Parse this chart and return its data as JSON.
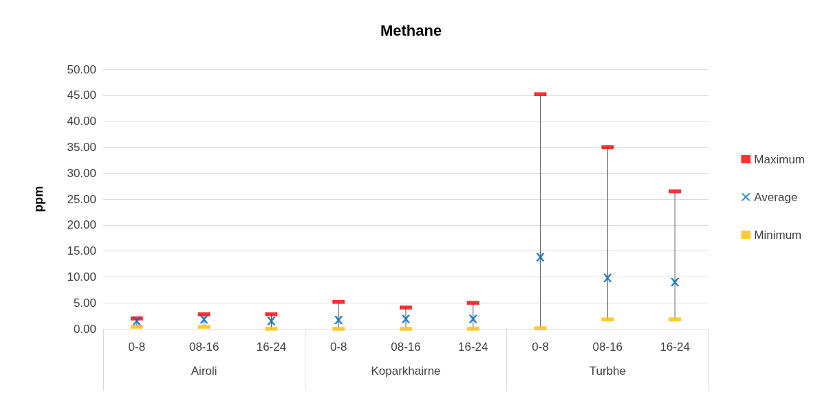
{
  "chart_data": {
    "type": "scatter",
    "title": "Methane",
    "ylabel": "ppm",
    "categories": [
      "0-8",
      "08-16",
      "16-24",
      "0-8",
      "08-16",
      "16-24",
      "0-8",
      "08-16",
      "16-24"
    ],
    "annotations": [
      "Airoli",
      "Koparkhairne",
      "Turbhe"
    ],
    "series": [
      {
        "name": "Maximum",
        "color": "#ff0000",
        "marker": "square",
        "values": [
          2.0,
          2.8,
          2.8,
          5.2,
          4.1,
          5.0,
          45.2,
          35.0,
          26.5
        ]
      },
      {
        "name": "Average",
        "color": "#0070c0",
        "marker": "cross",
        "values": [
          1.5,
          1.8,
          1.5,
          1.7,
          1.9,
          1.9,
          13.8,
          9.8,
          9.0
        ]
      },
      {
        "name": "Minimum",
        "color": "#ffc000",
        "marker": "square",
        "values": [
          0.4,
          0.4,
          0.0,
          0.0,
          0.0,
          0.0,
          0.1,
          1.8,
          1.8
        ]
      }
    ],
    "ylim": [
      0,
      50
    ],
    "yticks": [
      {
        "value": 0,
        "label": "0.00"
      },
      {
        "value": 5,
        "label": "5.00"
      },
      {
        "value": 10,
        "label": "10.00"
      },
      {
        "value": 15,
        "label": "15.00"
      },
      {
        "value": 20,
        "label": "20.00"
      },
      {
        "value": 25,
        "label": "25.00"
      },
      {
        "value": 30,
        "label": "30.00"
      },
      {
        "value": 35,
        "label": "35.00"
      },
      {
        "value": 40,
        "label": "40.00"
      },
      {
        "value": 45,
        "label": "45.00"
      },
      {
        "value": 50,
        "label": "50.00"
      }
    ],
    "grid": "y",
    "legend": "right"
  }
}
